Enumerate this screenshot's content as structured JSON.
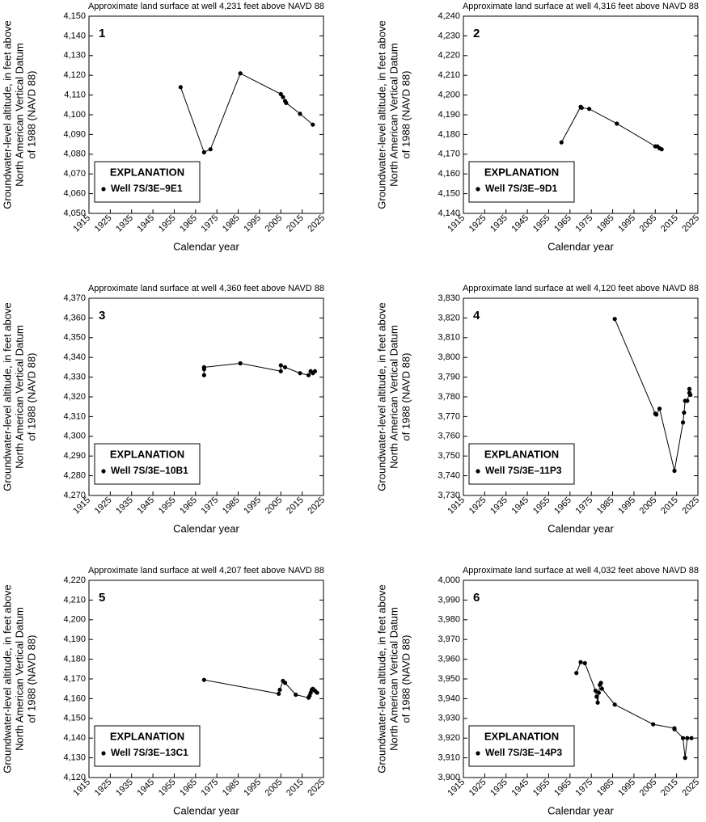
{
  "chart_data": [
    {
      "type": "line",
      "panel_label": "1",
      "title": "Approximate land surface at well 4,231 feet above NAVD 88",
      "xlabel": "Calendar year",
      "ylabel": [
        "Groundwater-level altitude, in feet above",
        "North American Vertical Datum",
        "of 1988 (NAVD 88)"
      ],
      "legend_title": "EXPLANATION",
      "legend_position": "lower left",
      "series": [
        {
          "name": "Well 7S/3E–9E1",
          "color": "#000000",
          "x": [
            1958,
            1969,
            1972,
            1986,
            2005,
            2006,
            2007,
            2007.5,
            2014,
            2020
          ],
          "values": [
            4114,
            4081,
            4082.5,
            4121,
            4110.5,
            4109,
            4107,
            4106,
            4100.5,
            4095
          ]
        }
      ],
      "xlim": [
        1915,
        2025
      ],
      "xticks": [
        1915,
        1925,
        1935,
        1945,
        1955,
        1965,
        1975,
        1985,
        1995,
        2005,
        2015,
        2025
      ],
      "ylim": [
        4050,
        4150
      ],
      "yticks": [
        {
          "value": 4050,
          "label": "4,050"
        },
        {
          "value": 4060,
          "label": "4,060"
        },
        {
          "value": 4070,
          "label": "4,070"
        },
        {
          "value": 4080,
          "label": "4,080"
        },
        {
          "value": 4090,
          "label": "4,090"
        },
        {
          "value": 4100,
          "label": "4,100"
        },
        {
          "value": 4110,
          "label": "4,110"
        },
        {
          "value": 4120,
          "label": "4,120"
        },
        {
          "value": 4130,
          "label": "4,130"
        },
        {
          "value": 4140,
          "label": "4,140"
        },
        {
          "value": 4150,
          "label": "4,150"
        }
      ]
    },
    {
      "type": "line",
      "panel_label": "2",
      "title": "Approximate land surface at well 4,316 feet above NAVD 88",
      "xlabel": "Calendar year",
      "ylabel": [
        "Groundwater-level altitude, in feet above",
        "North American Vertical Datum",
        "of 1988 (NAVD 88)"
      ],
      "legend_title": "EXPLANATION",
      "legend_position": "lower left",
      "series": [
        {
          "name": "Well 7S/3E–9D1",
          "color": "#000000",
          "x": [
            1961,
            1970,
            1970.5,
            1974,
            1987,
            2005,
            2006,
            2007,
            2008
          ],
          "values": [
            4176,
            4194,
            4193.5,
            4193,
            4185.5,
            4174,
            4174,
            4173,
            4172.5
          ]
        }
      ],
      "xlim": [
        1915,
        2025
      ],
      "xticks": [
        1915,
        1925,
        1935,
        1945,
        1955,
        1965,
        1975,
        1985,
        1995,
        2005,
        2015,
        2025
      ],
      "ylim": [
        4140,
        4240
      ],
      "yticks": [
        {
          "value": 4140,
          "label": "4,140"
        },
        {
          "value": 4150,
          "label": "4,150"
        },
        {
          "value": 4160,
          "label": "4,160"
        },
        {
          "value": 4170,
          "label": "4,170"
        },
        {
          "value": 4180,
          "label": "4,180"
        },
        {
          "value": 4190,
          "label": "4,190"
        },
        {
          "value": 4200,
          "label": "4,200"
        },
        {
          "value": 4210,
          "label": "4,210"
        },
        {
          "value": 4220,
          "label": "4,220"
        },
        {
          "value": 4230,
          "label": "4,230"
        },
        {
          "value": 4240,
          "label": "4,240"
        }
      ]
    },
    {
      "type": "line",
      "panel_label": "3",
      "title": "Approximate land surface at well 4,360 feet above NAVD 88",
      "xlabel": "Calendar year",
      "ylabel": [
        "Groundwater-level altitude, in feet above",
        "North American Vertical Datum",
        "of 1988 (NAVD 88)"
      ],
      "legend_title": "EXPLANATION",
      "legend_position": "lower left",
      "series": [
        {
          "name": "Well 7S/3E–10B1",
          "color": "#000000",
          "x": [
            1969,
            1969,
            1969,
            1986,
            2005,
            2005,
            2007,
            2014,
            2018,
            2019,
            2020,
            2021
          ],
          "values": [
            4331,
            4334,
            4335,
            4337,
            4333,
            4336,
            4335,
            4332,
            4331,
            4333,
            4332,
            4333
          ]
        }
      ],
      "xlim": [
        1915,
        2025
      ],
      "xticks": [
        1915,
        1925,
        1935,
        1945,
        1955,
        1965,
        1975,
        1985,
        1995,
        2005,
        2015,
        2025
      ],
      "ylim": [
        4270,
        4370
      ],
      "yticks": [
        {
          "value": 4270,
          "label": "4,270"
        },
        {
          "value": 4280,
          "label": "4,280"
        },
        {
          "value": 4290,
          "label": "4,290"
        },
        {
          "value": 4300,
          "label": "4,300"
        },
        {
          "value": 4310,
          "label": "4,310"
        },
        {
          "value": 4320,
          "label": "4,320"
        },
        {
          "value": 4330,
          "label": "4,330"
        },
        {
          "value": 4340,
          "label": "4,340"
        },
        {
          "value": 4350,
          "label": "4,350"
        },
        {
          "value": 4360,
          "label": "4,360"
        },
        {
          "value": 4370,
          "label": "4,370"
        }
      ]
    },
    {
      "type": "line",
      "panel_label": "4",
      "title": "Approximate land surface at well 4,120 feet above NAVD 88",
      "xlabel": "Calendar year",
      "ylabel": [
        "Groundwater-level altitude, in feet above",
        "North American Vertical Datum",
        "of 1988 (NAVD 88)"
      ],
      "legend_title": "EXPLANATION",
      "legend_position": "lower left",
      "series": [
        {
          "name": "Well 7S/3E–11P3",
          "color": "#000000",
          "x": [
            1986,
            2005,
            2005.5,
            2007,
            2014,
            2018,
            2018.5,
            2019,
            2020,
            2021,
            2021,
            2021.5
          ],
          "values": [
            3819.5,
            3771.5,
            3771,
            3774,
            3742.5,
            3767,
            3772,
            3778,
            3778,
            3782,
            3784,
            3781
          ]
        }
      ],
      "xlim": [
        1915,
        2025
      ],
      "xticks": [
        1915,
        1925,
        1935,
        1945,
        1955,
        1965,
        1975,
        1985,
        1995,
        2005,
        2015,
        2025
      ],
      "ylim": [
        3730,
        3830
      ],
      "yticks": [
        {
          "value": 3730,
          "label": "3,730"
        },
        {
          "value": 3740,
          "label": "3,740"
        },
        {
          "value": 3750,
          "label": "3,750"
        },
        {
          "value": 3760,
          "label": "3,760"
        },
        {
          "value": 3770,
          "label": "3,770"
        },
        {
          "value": 3780,
          "label": "3,780"
        },
        {
          "value": 3790,
          "label": "3,790"
        },
        {
          "value": 3800,
          "label": "3,800"
        },
        {
          "value": 3810,
          "label": "3,810"
        },
        {
          "value": 3820,
          "label": "3,820"
        },
        {
          "value": 3830,
          "label": "3,830"
        }
      ]
    },
    {
      "type": "line",
      "panel_label": "5",
      "title": "Approximate land surface at well 4,207 feet above NAVD 88",
      "xlabel": "Calendar year",
      "ylabel": [
        "Groundwater-level altitude, in feet above",
        "North American Vertical Datum",
        "of 1988 (NAVD 88)"
      ],
      "legend_title": "EXPLANATION",
      "legend_position": "lower left",
      "series": [
        {
          "name": "Well 7S/3E–13C1",
          "color": "#000000",
          "x": [
            1969,
            2004,
            2004.5,
            2006,
            2007,
            2012,
            2018,
            2018.5,
            2019,
            2019.5,
            2020,
            2021,
            2022
          ],
          "values": [
            4169.5,
            4162.5,
            4164.5,
            4169,
            4168,
            4162,
            4160.5,
            4161.5,
            4163,
            4164.5,
            4165,
            4164,
            4163
          ]
        }
      ],
      "xlim": [
        1915,
        2025
      ],
      "xticks": [
        1915,
        1925,
        1935,
        1945,
        1955,
        1965,
        1975,
        1985,
        1995,
        2005,
        2015,
        2025
      ],
      "ylim": [
        4120,
        4220
      ],
      "yticks": [
        {
          "value": 4120,
          "label": "4,120"
        },
        {
          "value": 4130,
          "label": "4,130"
        },
        {
          "value": 4140,
          "label": "4,140"
        },
        {
          "value": 4150,
          "label": "4,150"
        },
        {
          "value": 4160,
          "label": "4,160"
        },
        {
          "value": 4170,
          "label": "4,170"
        },
        {
          "value": 4180,
          "label": "4,180"
        },
        {
          "value": 4190,
          "label": "4,190"
        },
        {
          "value": 4200,
          "label": "4,200"
        },
        {
          "value": 4210,
          "label": "4,210"
        },
        {
          "value": 4220,
          "label": "4,220"
        }
      ]
    },
    {
      "type": "line",
      "panel_label": "6",
      "title": "Approximate land surface at well 4,032 feet above NAVD 88",
      "xlabel": "Calendar year",
      "ylabel": [
        "Groundwater-level altitude, in feet above",
        "North American Vertical Datum",
        "of 1988 (NAVD 88)"
      ],
      "legend_title": "EXPLANATION",
      "legend_position": "lower left",
      "series": [
        {
          "name": "Well 7S/3E–14P3",
          "color": "#000000",
          "x": [
            1968,
            1970,
            1972,
            1977,
            1977.5,
            1978,
            1978.5,
            1979,
            1979.5,
            1980,
            1986,
            2004,
            2014,
            2014,
            2018,
            2019,
            2020,
            2022
          ],
          "values": [
            3953,
            3958.5,
            3958,
            3944,
            3941,
            3938,
            3943,
            3947,
            3948,
            3945,
            3937,
            3927,
            3925,
            3924.5,
            3920,
            3910,
            3920,
            3920
          ]
        }
      ],
      "xlim": [
        1915,
        2025
      ],
      "xticks": [
        1915,
        1925,
        1935,
        1945,
        1955,
        1965,
        1975,
        1985,
        1995,
        2005,
        2015,
        2025
      ],
      "ylim": [
        3900,
        4000
      ],
      "yticks": [
        {
          "value": 3900,
          "label": "3,900"
        },
        {
          "value": 3910,
          "label": "3,910"
        },
        {
          "value": 3920,
          "label": "3,920"
        },
        {
          "value": 3930,
          "label": "3,930"
        },
        {
          "value": 3940,
          "label": "3,940"
        },
        {
          "value": 3950,
          "label": "3,950"
        },
        {
          "value": 3960,
          "label": "3,960"
        },
        {
          "value": 3970,
          "label": "3,970"
        },
        {
          "value": 3980,
          "label": "3,980"
        },
        {
          "value": 3990,
          "label": "3,990"
        },
        {
          "value": 4000,
          "label": "4,000"
        }
      ]
    }
  ]
}
